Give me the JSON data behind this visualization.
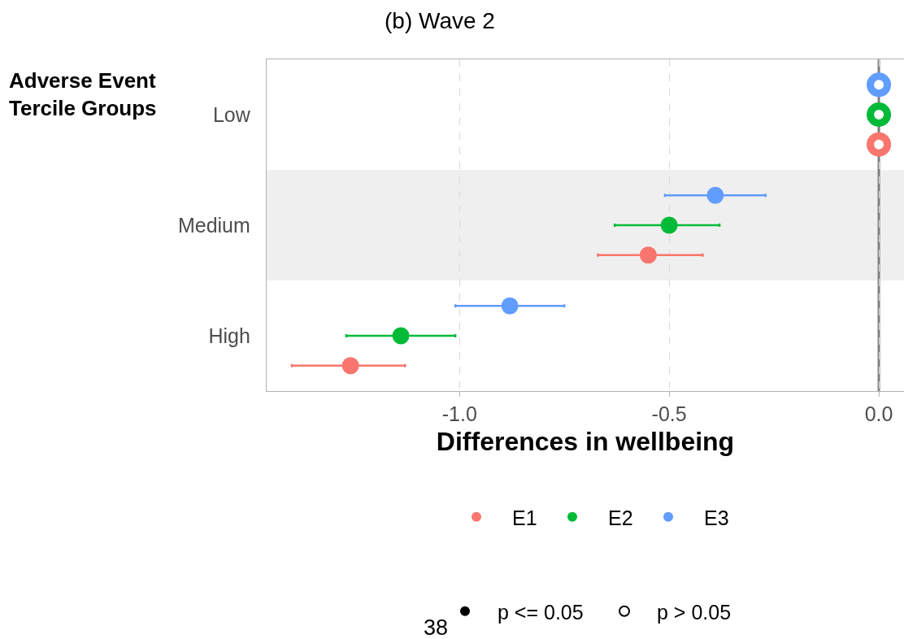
{
  "chart_data": {
    "type": "scatter",
    "orientation": "horizontal",
    "title": "(b) Wave 2",
    "xlabel": "Differences in wellbeing",
    "ylabel": "Adverse Event\nTercile Groups",
    "categories": [
      "Low",
      "Medium",
      "High"
    ],
    "series": [
      {
        "name": "E1",
        "color": "#f8766d",
        "values": [
          null,
          -0.55,
          -1.26
        ],
        "errors": [
          null,
          [
            -0.67,
            -0.42
          ],
          [
            -1.4,
            -1.13
          ]
        ]
      },
      {
        "name": "E2",
        "color": "#00ba38",
        "values": [
          null,
          -0.5,
          -1.14
        ],
        "errors": [
          null,
          [
            -0.63,
            -0.38
          ],
          [
            -1.27,
            -1.01
          ]
        ]
      },
      {
        "name": "E3",
        "color": "#619cff",
        "values": [
          null,
          -0.39,
          -0.88
        ],
        "errors": [
          null,
          [
            -0.51,
            -0.27
          ],
          [
            -1.01,
            -0.75
          ]
        ]
      },
      {
        "color": "#f8766d",
        "values": [
          0,
          null,
          null
        ],
        "colors": [
          "#ffffff",
          null,
          null
        ]
      },
      {
        "color": "#00ba38",
        "values": [
          0,
          null,
          null
        ],
        "colors": [
          "#ffffff",
          null,
          null
        ]
      },
      {
        "color": "#619cff",
        "values": [
          0,
          null,
          null
        ],
        "colors": [
          "#ffffff",
          null,
          null
        ]
      },
      {
        "name": "p <= 0.05",
        "color": "#000000",
        "values": [
          null,
          null,
          null
        ]
      },
      {
        "name": "p > 0.05",
        "color": "#000000",
        "values": [
          null,
          null,
          null
        ],
        "colors": [
          "#ffffff",
          "#ffffff",
          "#ffffff"
        ]
      }
    ],
    "xlim": [
      -1.46,
      0.06
    ],
    "xticks": [
      {
        "value": -1,
        "label": "-1.0"
      },
      {
        "value": -0.5,
        "label": "-0.5"
      },
      {
        "value": 0,
        "label": "0.0"
      }
    ],
    "ref_lines": [
      {
        "axis": "x",
        "value": 0,
        "color": "#7f7f7f"
      }
    ],
    "bands": [
      {
        "axis": "y",
        "from": "Medium",
        "to": "Medium",
        "color": "#efefef"
      }
    ],
    "grid": "x",
    "legend": "bottom",
    "marker": "circle",
    "annotations": [
      "38"
    ]
  }
}
